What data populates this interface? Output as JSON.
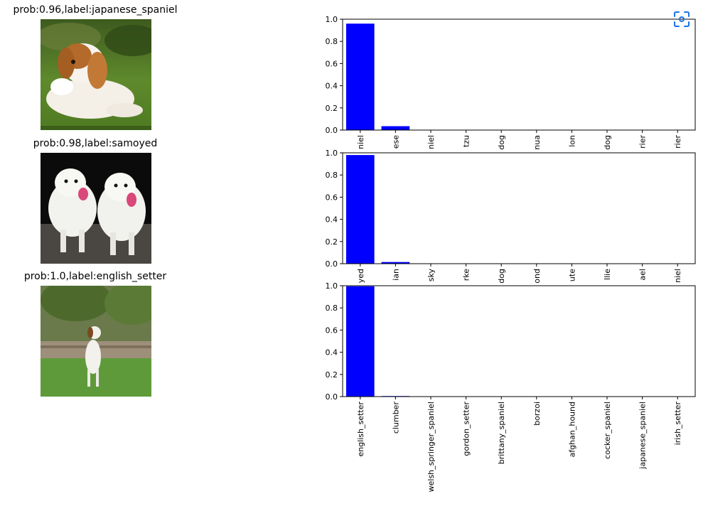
{
  "rows": [
    {
      "title": "prob:0.96,label:japanese_spaniel",
      "photo_icon": "japanese-spaniel-photo"
    },
    {
      "title": "prob:0.98,label:samoyed",
      "photo_icon": "samoyed-photo"
    },
    {
      "title": "prob:1.0,label:english_setter",
      "photo_icon": "english-setter-photo"
    }
  ],
  "chart_data": [
    {
      "type": "bar",
      "categories": [
        "niel",
        "ese",
        "niel",
        "tzu",
        "dog",
        "nua",
        "lon",
        "dog",
        "rier",
        "rier"
      ],
      "values": [
        0.96,
        0.035,
        0.003,
        0.002,
        0.001,
        0.001,
        0.001,
        0.001,
        0.001,
        0.001
      ],
      "ylim": [
        0,
        1.0
      ],
      "yticks": [
        "0.0",
        "0.2",
        "0.4",
        "0.6",
        "0.8",
        "1.0"
      ],
      "bar_color": "#0000ff"
    },
    {
      "type": "bar",
      "categories": [
        "yed",
        "ian",
        "sky",
        "rke",
        "dog",
        "ond",
        "ute",
        "llie",
        "ael",
        "niel"
      ],
      "values": [
        0.98,
        0.015,
        0.002,
        0.001,
        0.001,
        0.001,
        0.001,
        0.001,
        0.001,
        0.001
      ],
      "ylim": [
        0,
        1.0
      ],
      "yticks": [
        "0.0",
        "0.2",
        "0.4",
        "0.6",
        "0.8",
        "1.0"
      ],
      "bar_color": "#0000ff"
    },
    {
      "type": "bar",
      "categories": [
        "english_setter",
        "clumber",
        "welsh_springer_spaniel",
        "gordon_setter",
        "brittany_spaniel",
        "borzoi",
        "afghan_hound",
        "cocker_spaniel",
        "japanese_spaniel",
        "irish_setter"
      ],
      "values": [
        0.995,
        0.005,
        0.001,
        0.0005,
        0.0003,
        0.0002,
        0.0002,
        0.0001,
        0.0001,
        0.0001
      ],
      "ylim": [
        0,
        1.0
      ],
      "yticks": [
        "0.0",
        "0.2",
        "0.4",
        "0.6",
        "0.8",
        "1.0"
      ],
      "bar_color": "#0000ff"
    }
  ]
}
